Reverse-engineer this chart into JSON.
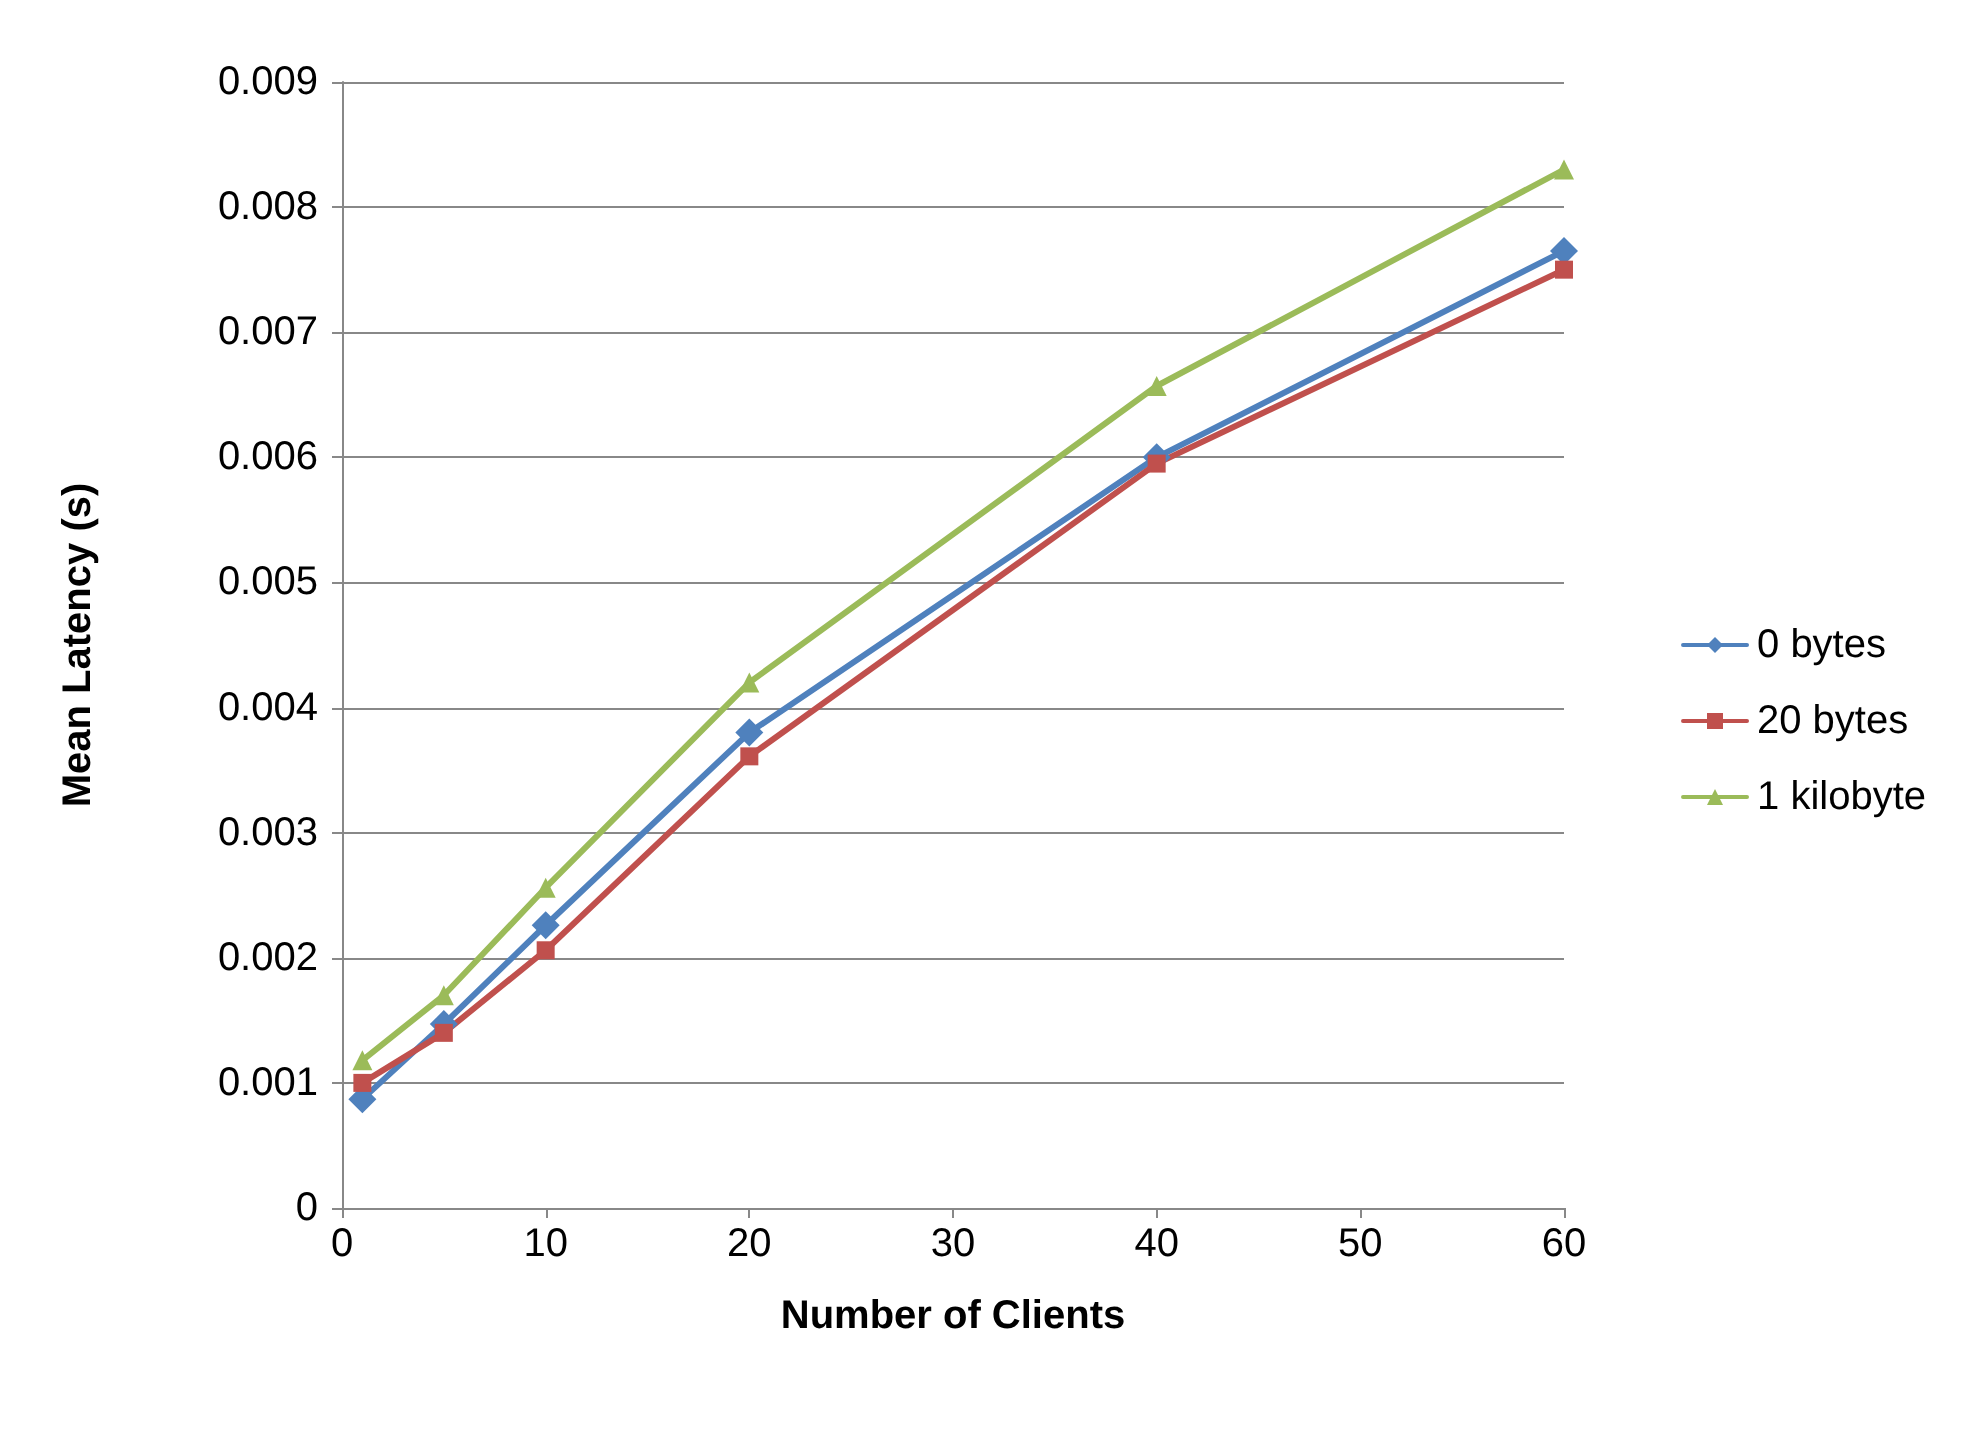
{
  "chart_data": {
    "type": "line",
    "xlabel": "Number of Clients",
    "ylabel": "Mean Latency (s)",
    "x": [
      1,
      5,
      10,
      20,
      40,
      60
    ],
    "series": [
      {
        "name": "0 bytes",
        "color": "#4f81bd",
        "marker": "diamond",
        "values": [
          0.00087,
          0.00147,
          0.00226,
          0.0038,
          0.006,
          0.00765
        ]
      },
      {
        "name": "20 bytes",
        "color": "#c0504d",
        "marker": "square",
        "values": [
          0.001,
          0.0014,
          0.00206,
          0.00361,
          0.00595,
          0.0075
        ]
      },
      {
        "name": "1 kilobyte",
        "color": "#9bbb59",
        "marker": "triangle",
        "values": [
          0.00118,
          0.0017,
          0.00256,
          0.0042,
          0.00657,
          0.0083
        ]
      }
    ],
    "xlim": [
      0,
      60
    ],
    "xticks": [
      0,
      10,
      20,
      30,
      40,
      50,
      60
    ],
    "ylim": [
      0,
      0.009
    ],
    "yticks": [
      0,
      0.001,
      0.002,
      0.003,
      0.004,
      0.005,
      0.006,
      0.007,
      0.008,
      0.009
    ],
    "grid": "y",
    "legend": "right",
    "line_style": "solid"
  }
}
